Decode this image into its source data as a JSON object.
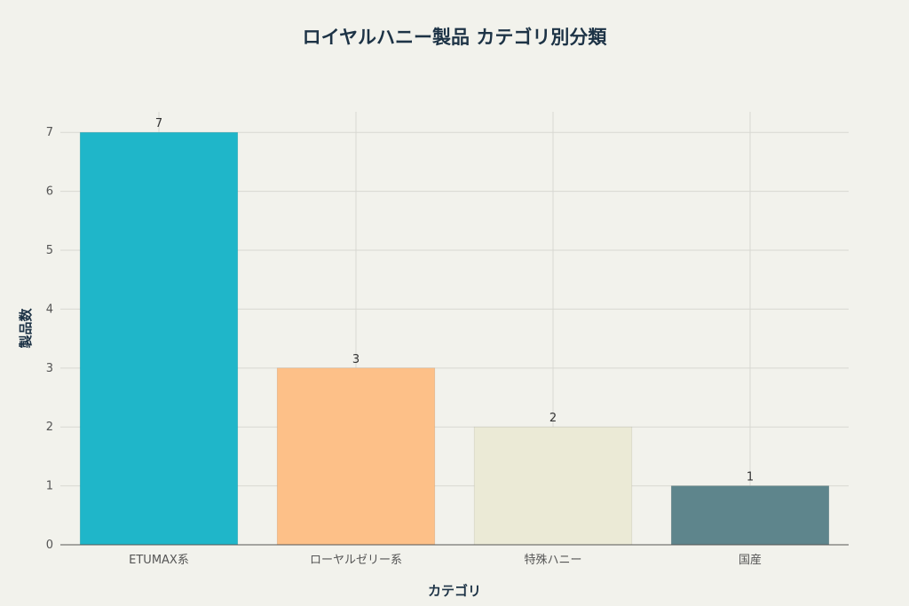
{
  "chart_data": {
    "type": "bar",
    "title": "ロイヤルハニー製品 カテゴリ別分類",
    "xlabel": "カテゴリ",
    "ylabel": "製品数",
    "categories": [
      "ETUMAX系",
      "ローヤルゼリー系",
      "特殊ハニー",
      "国産"
    ],
    "values": [
      7,
      3,
      2,
      1
    ],
    "data_labels": [
      "7",
      "3",
      "2",
      "1"
    ],
    "colors": [
      "#1fb6c9",
      "#fdc088",
      "#ebead6",
      "#5e858c"
    ],
    "ylim": [
      0,
      7.35
    ],
    "yticks": [
      "0",
      "1",
      "2",
      "3",
      "4",
      "5",
      "6",
      "7"
    ],
    "grid": true,
    "legend": "none"
  },
  "theme": {
    "background": "#f2f2ec",
    "title_color": "#1d3346"
  }
}
